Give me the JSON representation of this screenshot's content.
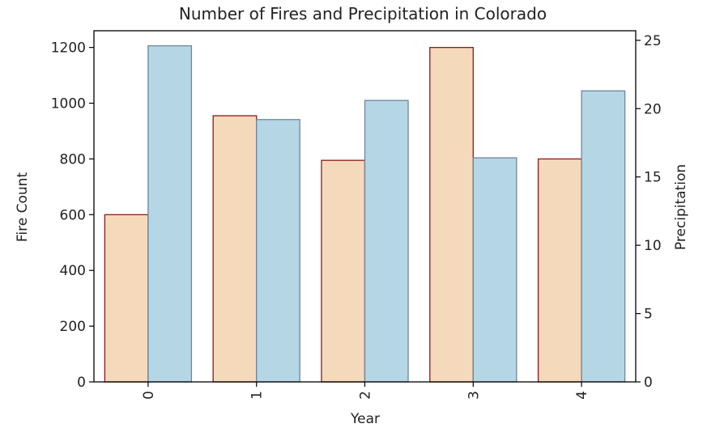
{
  "chart_data": {
    "type": "bar",
    "title": "Number of Fires and Precipitation in Colorado",
    "xlabel": "Year",
    "ylabel_left": "Fire Count",
    "ylabel_right": "Precipitation",
    "categories": [
      "0",
      "1",
      "2",
      "3",
      "4"
    ],
    "left_ylim": [
      0,
      1260
    ],
    "right_ylim": [
      0,
      25.7
    ],
    "left_yticks": [
      0,
      200,
      400,
      600,
      800,
      1000,
      1200
    ],
    "right_yticks": [
      0,
      5,
      10,
      15,
      20,
      25
    ],
    "left_ytick_labels": [
      "0",
      "200",
      "400",
      "600",
      "800",
      "1000",
      "1200"
    ],
    "right_ytick_labels": [
      "0",
      "5",
      "10",
      "15",
      "20",
      "25"
    ],
    "series": [
      {
        "axis": "left",
        "values": [
          600,
          955,
          795,
          1200,
          800
        ],
        "fill": "#f5d9bb",
        "stroke": "#8b1a1a"
      },
      {
        "axis": "right",
        "values": [
          24.6,
          19.2,
          20.6,
          16.4,
          21.3
        ],
        "fill": "#b5d6e5",
        "stroke": "#6f879a"
      }
    ],
    "grid": false,
    "x_tick_rotation": "vertical"
  }
}
